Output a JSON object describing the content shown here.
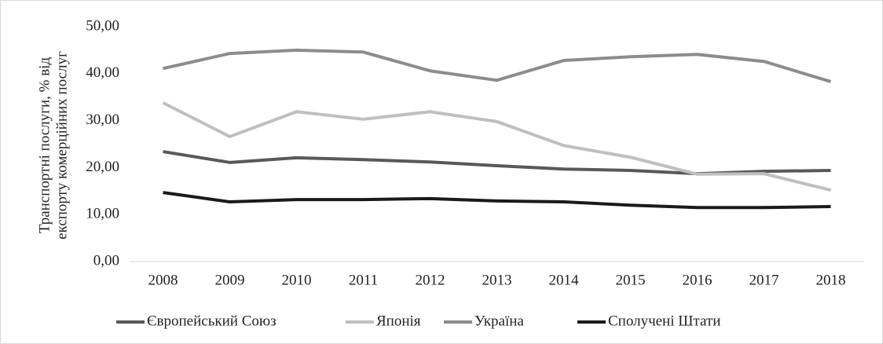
{
  "chart_data": {
    "type": "line",
    "y_label": [
      "Транспортні послуги, % від",
      "експорту комерційних послуг"
    ],
    "categories": [
      "2008",
      "2009",
      "2010",
      "2011",
      "2012",
      "2013",
      "2014",
      "2015",
      "2016",
      "2017",
      "2018"
    ],
    "series": [
      {
        "name": "Європейський Союз",
        "color": "#595959",
        "values": [
          23.4,
          21.1,
          22.1,
          21.7,
          21.2,
          20.4,
          19.7,
          19.4,
          18.7,
          19.2,
          19.4
        ]
      },
      {
        "name": "Японія",
        "color": "#bfbfbf",
        "values": [
          33.8,
          26.6,
          31.9,
          30.3,
          31.9,
          29.8,
          24.7,
          22.2,
          18.6,
          18.7,
          15.2
        ]
      },
      {
        "name": "Україна",
        "color": "#8c8c8c",
        "values": [
          41.1,
          44.3,
          45.0,
          44.6,
          40.6,
          38.6,
          42.8,
          43.6,
          44.1,
          42.6,
          38.3
        ]
      },
      {
        "name": "Сполучені Штати",
        "color": "#1a1a1a",
        "values": [
          14.7,
          12.7,
          13.2,
          13.2,
          13.4,
          12.9,
          12.7,
          12.0,
          11.5,
          11.5,
          11.7
        ]
      }
    ],
    "ylim": [
      0,
      50
    ],
    "yticks": [
      {
        "value": 0,
        "label": "0,00"
      },
      {
        "value": 10,
        "label": "10,00"
      },
      {
        "value": 20,
        "label": "20,00"
      },
      {
        "value": 30,
        "label": "30,00"
      },
      {
        "value": 40,
        "label": "40,00"
      },
      {
        "value": 50,
        "label": "50,00"
      }
    ],
    "grid": false,
    "legend": "bottom"
  }
}
